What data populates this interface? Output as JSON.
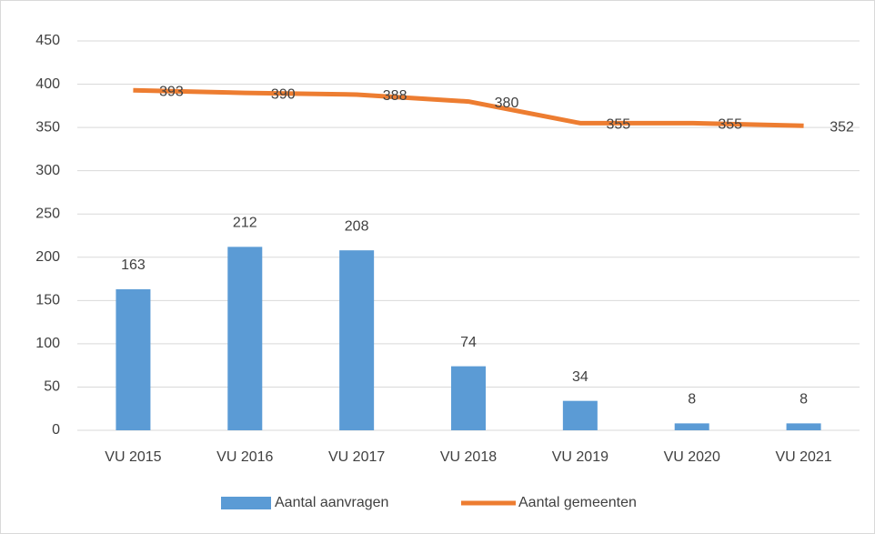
{
  "chart_data": {
    "type": "combo",
    "categories": [
      "VU 2015",
      "VU 2016",
      "VU 2017",
      "VU 2018",
      "VU 2019",
      "VU 2020",
      "VU 2021"
    ],
    "series": [
      {
        "name": "Aantal aanvragen",
        "type": "bar",
        "color": "#5b9bd5",
        "values": [
          163,
          212,
          208,
          74,
          34,
          8,
          8
        ]
      },
      {
        "name": "Aantal gemeenten",
        "type": "line",
        "color": "#ed7d31",
        "values": [
          393,
          390,
          388,
          380,
          355,
          355,
          352
        ]
      }
    ],
    "ylim": [
      0,
      450
    ],
    "yticks": [
      0,
      50,
      100,
      150,
      200,
      250,
      300,
      350,
      400,
      450
    ],
    "grid": true,
    "legend": "bottom"
  }
}
